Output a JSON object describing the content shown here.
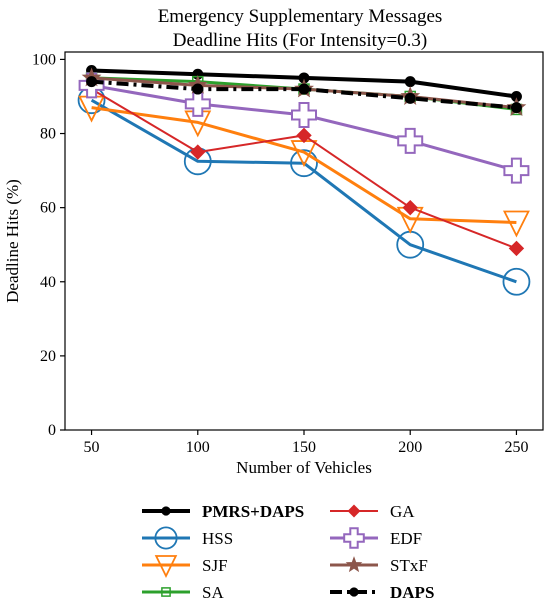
{
  "chart_data": {
    "type": "line",
    "title_lines": [
      "Emergency Supplementary Messages",
      "Deadline Hits (For Intensity=0.3)"
    ],
    "xlabel": "Number of Vehicles",
    "ylabel": "Deadline Hits (%)",
    "x": [
      50,
      100,
      150,
      200,
      250
    ],
    "xticks": [
      "50",
      "100",
      "150",
      "200",
      "250"
    ],
    "yticks": [
      "0",
      "20",
      "40",
      "60",
      "80",
      "100"
    ],
    "ylim": [
      0,
      102
    ],
    "grid": false,
    "legend_placement": "below plot, two columns",
    "series": [
      {
        "name": "PMRS+DAPS",
        "bold": true,
        "color": "#000000",
        "marker": "circle",
        "dash": "solid",
        "width": 4,
        "values": [
          97,
          96,
          95,
          94,
          90
        ]
      },
      {
        "name": "HSS",
        "bold": false,
        "color": "#1f77b4",
        "marker": "open-circle",
        "dash": "solid",
        "width": 3,
        "values": [
          89,
          72.5,
          72,
          50,
          40
        ]
      },
      {
        "name": "SJF",
        "bold": false,
        "color": "#ff7f0e",
        "marker": "open-triangle-down",
        "dash": "solid",
        "width": 3,
        "values": [
          87,
          83,
          75,
          57,
          56
        ]
      },
      {
        "name": "SA",
        "bold": false,
        "color": "#2ca02c",
        "marker": "open-square",
        "dash": "solid",
        "width": 3,
        "values": [
          95,
          94,
          92,
          90,
          86.5
        ]
      },
      {
        "name": "GA",
        "bold": false,
        "color": "#d62728",
        "marker": "diamond",
        "dash": "solid",
        "width": 2,
        "values": [
          92,
          75,
          79.5,
          60,
          49
        ]
      },
      {
        "name": "EDF",
        "bold": false,
        "color": "#9467bd",
        "marker": "open-plus",
        "dash": "solid",
        "width": 3,
        "values": [
          93,
          88,
          85,
          78,
          70
        ]
      },
      {
        "name": "STxF",
        "bold": false,
        "color": "#8c564b",
        "marker": "star",
        "dash": "solid",
        "width": 3,
        "values": [
          95,
          93,
          92,
          90,
          87
        ]
      },
      {
        "name": "DAPS",
        "bold": true,
        "color": "#000000",
        "marker": "circle",
        "dash": "dashdot",
        "width": 4,
        "values": [
          94,
          92,
          92,
          89.5,
          87
        ]
      }
    ]
  }
}
